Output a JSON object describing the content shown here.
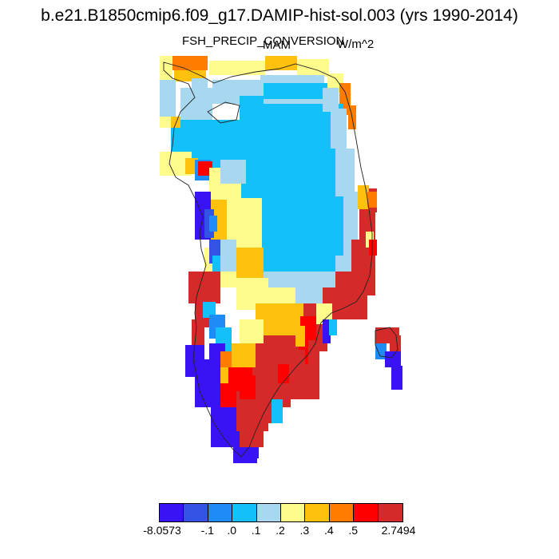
{
  "title": "b.e21.B1850cmip6.f09_g17.DAMIP-hist-sol.003 (yrs 1990-2014)",
  "variable": "FSH_PRECIP_CONVERSION",
  "season": "MAM",
  "units": "W/m^2",
  "colorbar": {
    "colors": [
      "#3a13f5",
      "#3352e6",
      "#1f8cf5",
      "#14c0fa",
      "#a7d8f0",
      "#fffc8c",
      "#fec10e",
      "#fe7d00",
      "#fe0000",
      "#d52a2a"
    ],
    "labels": [
      "-8.0573",
      "-.1",
      ".0",
      ".1",
      ".2",
      ".3",
      ".4",
      ".5",
      "2.7494"
    ]
  }
}
